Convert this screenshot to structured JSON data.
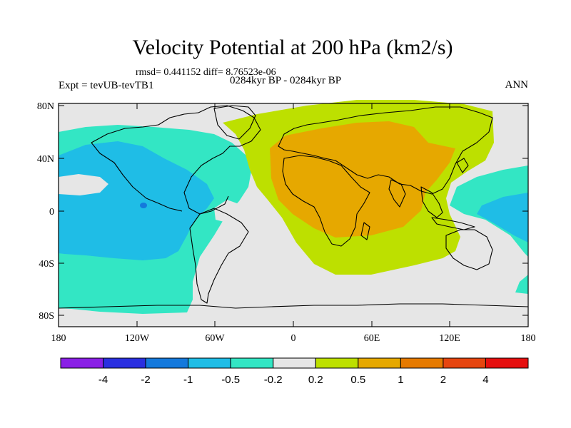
{
  "title": "Velocity Potential at 200 hPa (km2/s)",
  "stats": "rmsd= 0.441152  diff= 8.76523e-06",
  "experiment": "Expt = tevUB-tevTB1",
  "period": "0284kyr BP - 0284kyr BP",
  "season": "ANN",
  "lat_labels": [
    "80N",
    "40N",
    "0",
    "40S",
    "80S"
  ],
  "lon_labels": [
    "180",
    "120W",
    "60W",
    "0",
    "60E",
    "120E",
    "180"
  ],
  "colorbar": {
    "colors": [
      "#8a1fe6",
      "#2a2fe0",
      "#1479dc",
      "#1fbde6",
      "#33e6c4",
      "#e6e6e6",
      "#bde000",
      "#e6a800",
      "#e67a00",
      "#e6450f",
      "#e60f0f"
    ],
    "labels": [
      "-4",
      "-2",
      "-1",
      "-0.5",
      "-0.2",
      "0.2",
      "0.5",
      "1",
      "2",
      "4"
    ]
  }
}
